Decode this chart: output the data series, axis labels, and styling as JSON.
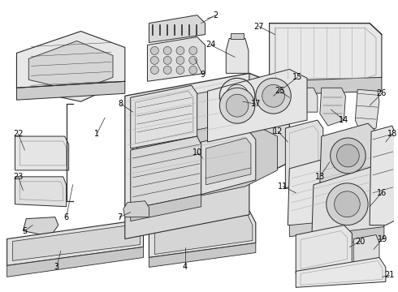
{
  "background_color": "#ffffff",
  "fig_width": 4.9,
  "fig_height": 3.6,
  "dpi": 100,
  "line_color": "#2a2a2a",
  "label_color": "#000000",
  "label_fontsize": 7.0,
  "fill_color": "#f0f0f0",
  "fill_color2": "#e0e0e0",
  "fill_color3": "#d0d0d0"
}
